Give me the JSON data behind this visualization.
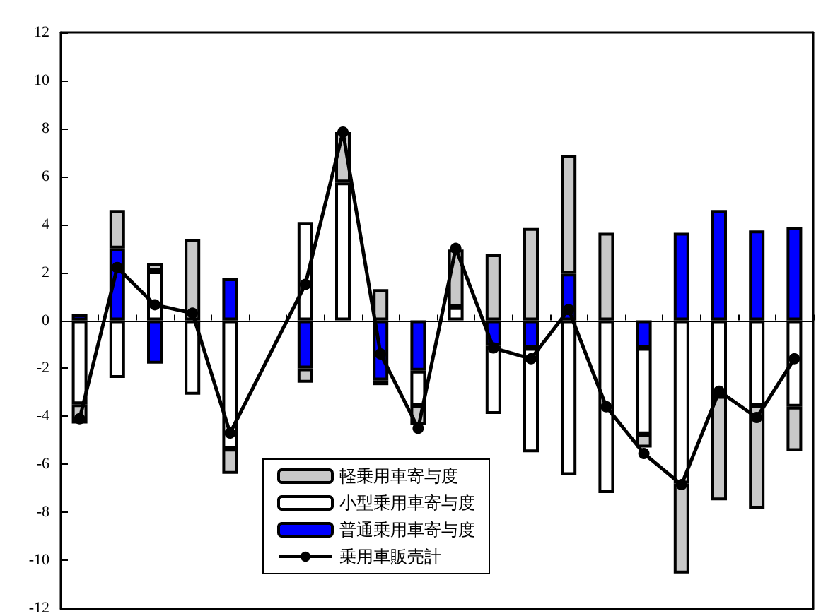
{
  "chart_data": {
    "type": "bar",
    "stacked": true,
    "categories": [
      null,
      null,
      null,
      null,
      null,
      null,
      null,
      null,
      null,
      null,
      null,
      null,
      null,
      null,
      null,
      null,
      null,
      null,
      null,
      null
    ],
    "series": [
      {
        "name": "普通乗用車寄与度",
        "color": "#0000ff",
        "values": [
          0.25,
          3.0,
          -1.8,
          null,
          1.75,
          null,
          -2.0,
          null,
          -2.5,
          -2.1,
          null,
          -1.05,
          -1.15,
          1.95,
          null,
          -1.15,
          3.65,
          4.6,
          3.75,
          3.9
        ]
      },
      {
        "name": "小型乗用車寄与度",
        "color": "#ffffff",
        "values": [
          -3.5,
          -2.4,
          2.05,
          -3.1,
          -5.35,
          null,
          4.1,
          5.75,
          -0.2,
          -1.45,
          0.55,
          -2.85,
          -4.35,
          -6.45,
          -7.2,
          -3.6,
          -6.8,
          -3.15,
          -3.55,
          -3.6
        ]
      },
      {
        "name": "軽乗用車寄与度",
        "color": "#c8c8c8",
        "values": [
          -0.8,
          1.6,
          0.35,
          3.4,
          -1.05,
          null,
          -0.6,
          2.1,
          1.3,
          -0.8,
          2.4,
          2.75,
          3.85,
          4.95,
          3.65,
          -0.55,
          -3.75,
          -4.35,
          -4.3,
          -1.85
        ]
      },
      {
        "name": "乗用車販売計",
        "type": "line",
        "color": "#000000",
        "marker": "circle",
        "values": [
          -4.1,
          2.2,
          0.65,
          0.3,
          -4.7,
          null,
          1.5,
          7.85,
          -1.4,
          -4.5,
          3.0,
          -1.15,
          -1.6,
          0.45,
          -3.6,
          -5.55,
          -6.85,
          -2.95,
          -4.05,
          -1.6
        ]
      }
    ],
    "ylim": [
      -12,
      12
    ],
    "yticks": [
      -12,
      -10,
      -8,
      -6,
      -4,
      -2,
      0,
      2,
      4,
      6,
      8,
      10,
      12
    ],
    "tick_labels": "y",
    "legend": "bottom"
  }
}
